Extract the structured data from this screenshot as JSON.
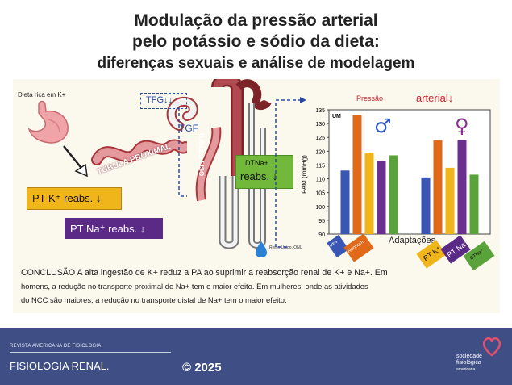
{
  "title": {
    "line1": "Modulação da pressão arterial",
    "line2": "pelo potássio e sódio da dieta:",
    "line3": "diferenças sexuais e análise de modelagem"
  },
  "abstract": {
    "diet_label": "Dieta rica em K+",
    "tubule_proximal": "TÚBULA PROXIMAL",
    "loop_label": "TUBULO LISO",
    "tfg": "TFG↓↓",
    "tgf": "TGF",
    "pt_k": "PT K⁺ reabs. ↓",
    "pt_na": "PT Na⁺ reabs. ↓",
    "dtna_line1": "DTNa+",
    "dtna_line2": "reabs. ↓",
    "credit": "Reino Unido, ONU",
    "pressure_label": "Pressão",
    "arterial_label": "arterial↓",
    "um_label": "UM",
    "conclusion_line1": "CONCLUSÃO A alta ingestão de K+ reduz a PA ao suprimir a reabsorção renal de K+ e Na+. Em",
    "conclusion_line2": "homens, a redução no transporte proximal de Na+ tem o maior efeito. Em mulheres, onde as atividades",
    "conclusion_line3": "do NCC são maiores, a redução no transporte distal de Na+ tem o maior efeito.",
    "legend": [
      {
        "label": "Todos",
        "color": "#3a56b5"
      },
      {
        "label": "Nenhum",
        "color": "#e06a1a"
      },
      {
        "label": "PT K⁺",
        "color": "#f1b51c"
      },
      {
        "label": "PT Na⁺",
        "color": "#6a2f8f"
      },
      {
        "label": "DTNa⁺",
        "color": "#5aa23a"
      }
    ]
  },
  "chart_data": {
    "type": "bar",
    "ylabel": "PAM (mmHg)",
    "xlabel": "Adaptações",
    "ylim": [
      90,
      135
    ],
    "yticks": [
      90,
      95,
      100,
      105,
      110,
      115,
      120,
      125,
      130,
      135
    ],
    "categories": [
      "♂",
      "♀"
    ],
    "series": [
      {
        "name": "Todos",
        "values": [
          113,
          110.5
        ]
      },
      {
        "name": "Nenhum",
        "values": [
          133,
          124
        ]
      },
      {
        "name": "PT K⁺",
        "values": [
          119.5,
          114
        ]
      },
      {
        "name": "PT Na⁺",
        "values": [
          116.5,
          124
        ]
      },
      {
        "name": "DTNa⁺",
        "values": [
          118.5,
          111.5
        ]
      }
    ],
    "colors": [
      "#3a56b5",
      "#e06a1a",
      "#f1b51c",
      "#6a2f8f",
      "#5aa23a"
    ]
  },
  "footer": {
    "journal": "REVISTA AMERICANA DE FISIOLOGIA",
    "section": "FISIOLOGIA RENAL.",
    "copyright": "© 2025",
    "society_line1": "sociedade",
    "society_line2": "fisiológica",
    "society_line3": "americana"
  }
}
